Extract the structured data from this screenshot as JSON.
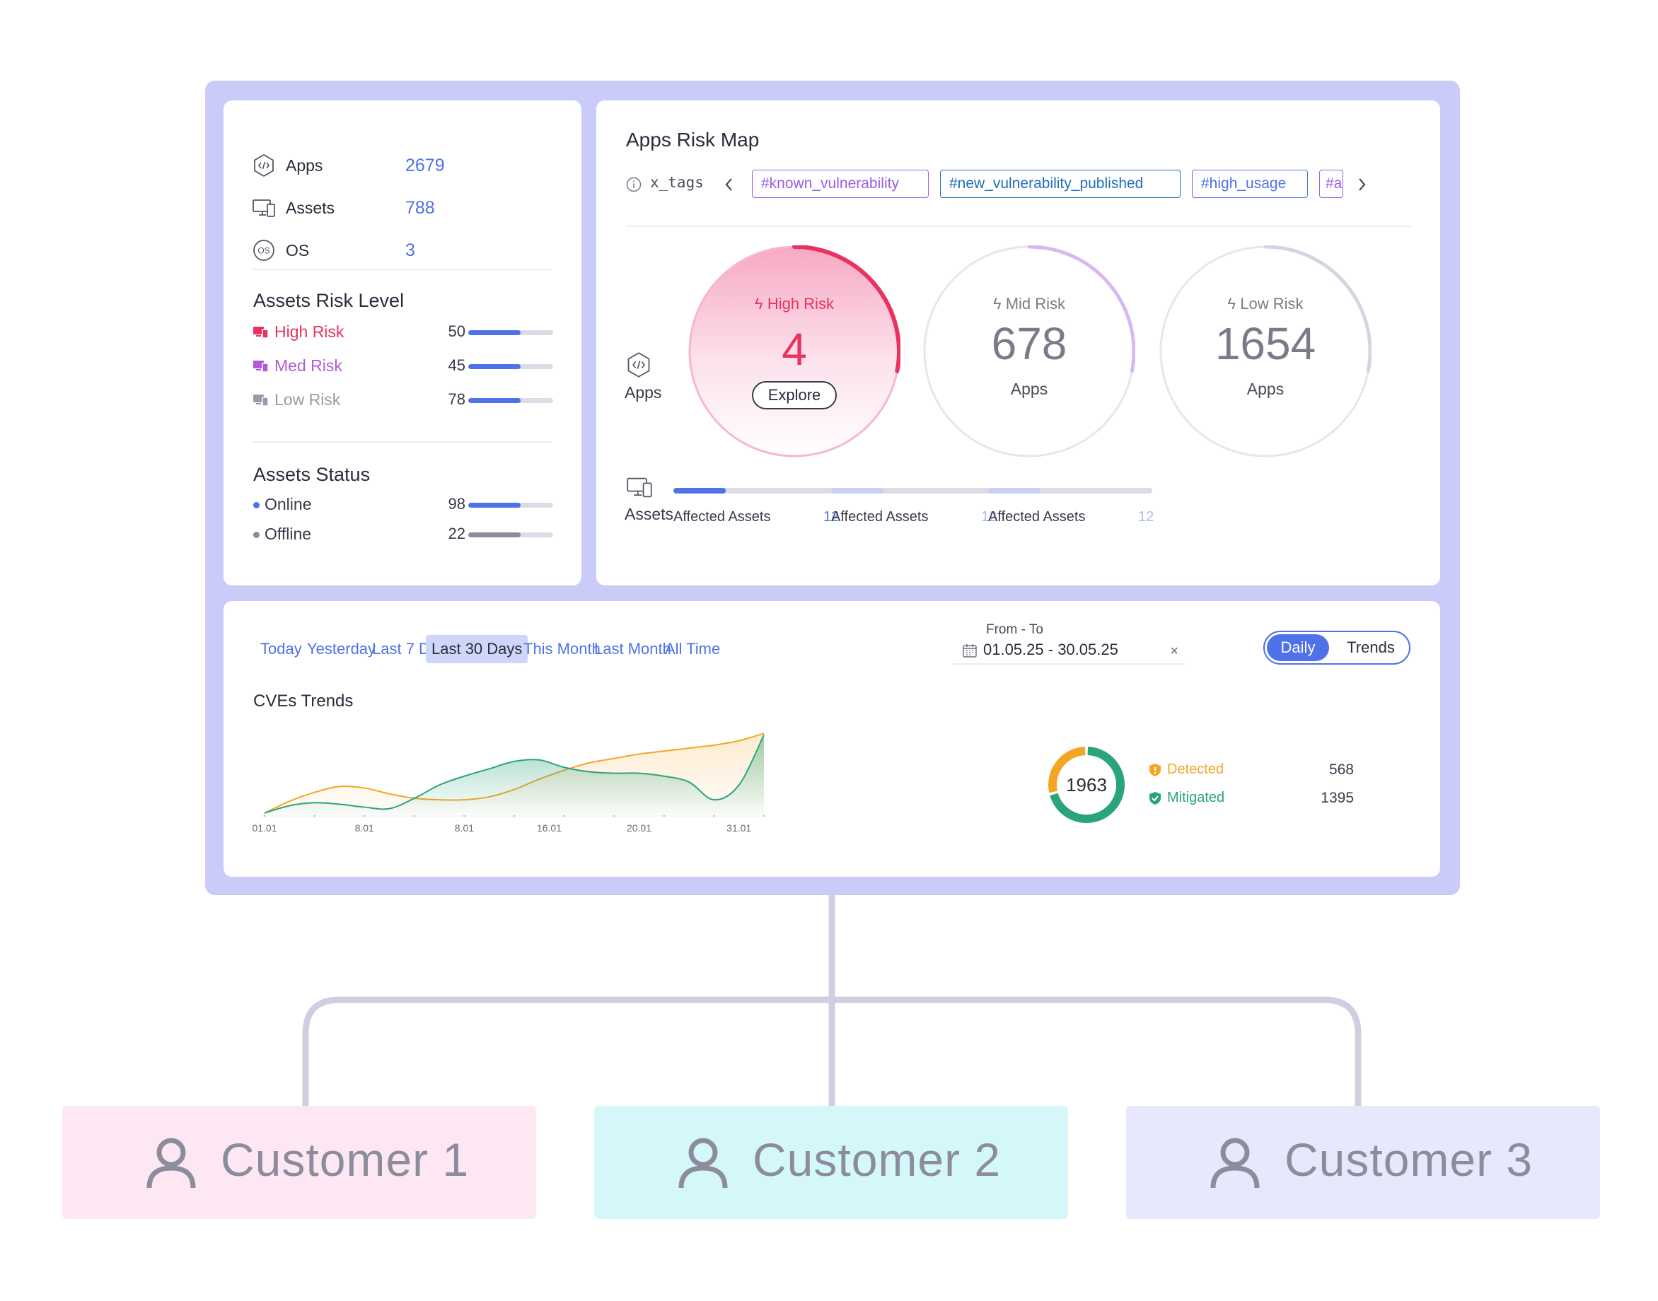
{
  "summary": {
    "items": [
      {
        "label": "Apps",
        "value": "2679",
        "icon": "code-hex-icon"
      },
      {
        "label": "Assets",
        "value": "788",
        "icon": "devices-icon"
      },
      {
        "label": "OS",
        "value": "3",
        "icon": "os-icon"
      }
    ]
  },
  "assets_risk_level": {
    "title": "Assets Risk Level",
    "rows": [
      {
        "label": "High Risk",
        "value": "50",
        "color": "#e8335f",
        "fill": 0.62
      },
      {
        "label": "Med Risk",
        "value": "45",
        "color": "#b45ad6",
        "fill": 0.62
      },
      {
        "label": "Low Risk",
        "value": "78",
        "color": "#9a9aaa",
        "fill": 0.62
      }
    ]
  },
  "assets_status": {
    "title": "Assets Status",
    "rows": [
      {
        "label": "Online",
        "value": "98",
        "color": "#4f72e8",
        "fill": 0.62
      },
      {
        "label": "Offline",
        "value": "22",
        "color": "#8c8c9c",
        "fill": 0.62
      }
    ]
  },
  "risk_map": {
    "title": "Apps Risk Map",
    "tags_label": "x_tags",
    "tags": [
      {
        "label": "#known_vulnerability",
        "color": "#9b5de5"
      },
      {
        "label": "#new_vulnerability_published",
        "color": "#1e6fb8"
      },
      {
        "label": "#high_usage",
        "color": "#4f72e8"
      },
      {
        "label": "#a",
        "color": "#9b5de5"
      }
    ],
    "row_apps": "Apps",
    "row_assets": "Assets",
    "circles": [
      {
        "head": "High Risk",
        "value": "4",
        "action": "Explore",
        "color": "#e8335f",
        "arc": 0.28
      },
      {
        "head": "Mid Risk",
        "value": "678",
        "sub": "Apps",
        "color": "#d7b8f0",
        "arc": 0.28
      },
      {
        "head": "Low Risk",
        "value": "1654",
        "sub": "Apps",
        "color": "#d5d5e2",
        "arc": 0.28
      }
    ],
    "affected": [
      {
        "label": "Affected Assets",
        "value": "12",
        "fill": 0.32,
        "bar_color": "#4f72e8",
        "value_color": "#4f72e8"
      },
      {
        "label": "Affected Assets",
        "value": "12",
        "fill": 0.32,
        "bar_color": "#c6d0f7",
        "value_color": "#a9b9f2"
      },
      {
        "label": "Affected Assets",
        "value": "12",
        "fill": 0.32,
        "bar_color": "#c6d0f7",
        "value_color": "#a9b9f2"
      }
    ]
  },
  "filters": {
    "items": [
      "Today",
      "Yesterday",
      "Last 7 Days",
      "Last 30 Days",
      "This Month",
      "Last Month",
      "All Time"
    ],
    "active": "Last 30 Days",
    "range_label": "From - To",
    "range_value": "01.05.25 - 30.05.25",
    "clear": "×",
    "toggle_daily": "Daily",
    "toggle_trends": "Trends"
  },
  "cves": {
    "title": "CVEs Trends",
    "donut_total": "1963",
    "legend": [
      {
        "label": "Detected",
        "value": "568",
        "color": "#f5a524"
      },
      {
        "label": "Mitigated",
        "value": "1395",
        "color": "#2aa57a"
      }
    ]
  },
  "chart_data": {
    "type": "area",
    "title": "CVEs Trends",
    "x_ticks": [
      "01.01",
      "8.01",
      "8.01",
      "16.01",
      "20.01",
      "31.01"
    ],
    "x": [
      0,
      1,
      2,
      3,
      4,
      5,
      6,
      7,
      8,
      9,
      10,
      11,
      12,
      13,
      14,
      15,
      16,
      17,
      18,
      19,
      20
    ],
    "series": [
      {
        "name": "Detected",
        "color": "#f5a524",
        "values": [
          2,
          18,
          30,
          38,
          36,
          28,
          22,
          20,
          20,
          24,
          34,
          48,
          60,
          70,
          76,
          82,
          86,
          90,
          94,
          100,
          110
        ]
      },
      {
        "name": "Mitigated",
        "color": "#2aa57a",
        "values": [
          2,
          12,
          16,
          14,
          10,
          8,
          22,
          40,
          52,
          62,
          72,
          74,
          64,
          58,
          56,
          56,
          52,
          44,
          20,
          40,
          108
        ]
      }
    ],
    "ylim": [
      0,
      115
    ],
    "grid": false
  },
  "customers": [
    {
      "label": "Customer 1",
      "bg": "#fde7f3"
    },
    {
      "label": "Customer 2",
      "bg": "#d4f8fa"
    },
    {
      "label": "Customer 3",
      "bg": "#e8e8fc"
    }
  ]
}
